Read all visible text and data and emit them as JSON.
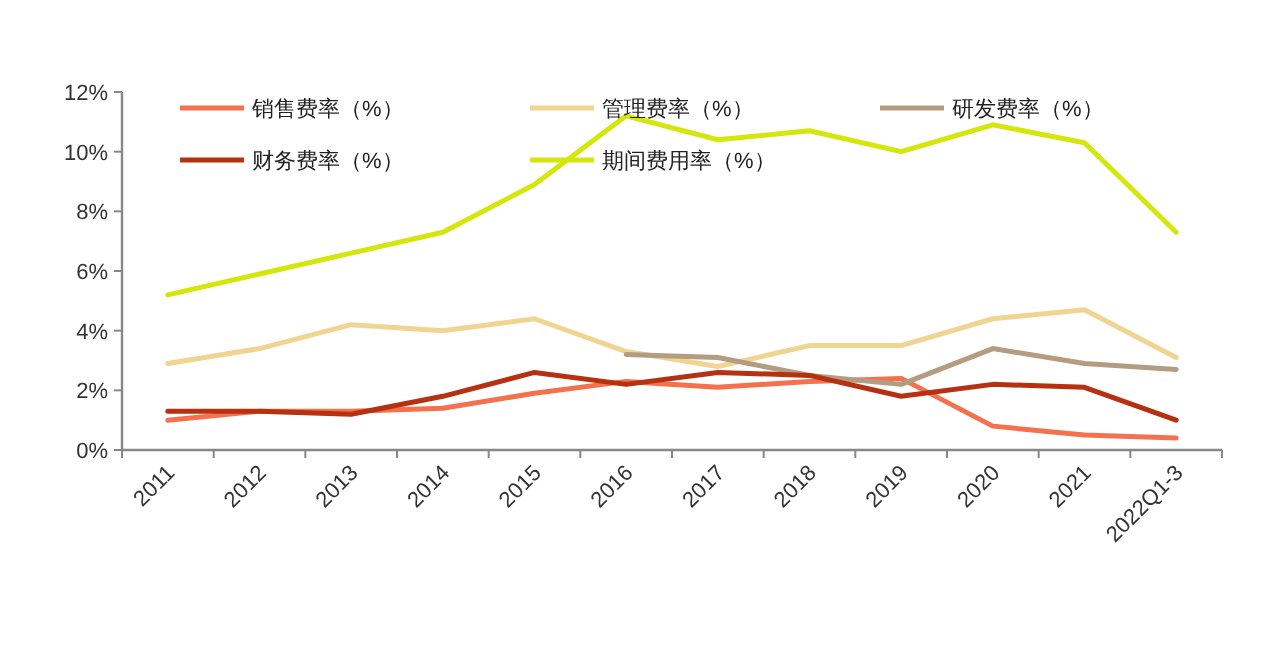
{
  "chart_data": {
    "type": "line",
    "categories": [
      "2011",
      "2012",
      "2013",
      "2014",
      "2015",
      "2016",
      "2017",
      "2018",
      "2019",
      "2020",
      "2021",
      "2022Q1-3"
    ],
    "series": [
      {
        "name": "销售费率（%）",
        "color": "#f4714e",
        "values": [
          1.0,
          1.3,
          1.3,
          1.4,
          1.9,
          2.3,
          2.1,
          2.3,
          2.4,
          0.8,
          0.5,
          0.4
        ]
      },
      {
        "name": "管理费率（%）",
        "color": "#f0d592",
        "values": [
          2.9,
          3.4,
          4.2,
          4.0,
          4.4,
          3.3,
          2.8,
          3.5,
          3.5,
          4.4,
          4.7,
          3.1
        ]
      },
      {
        "name": "研发费率（%）",
        "color": "#b39c7f",
        "values": [
          null,
          null,
          null,
          null,
          null,
          3.2,
          3.1,
          2.5,
          2.2,
          3.4,
          2.9,
          2.7
        ]
      },
      {
        "name": "财务费率（%）",
        "color": "#b5310f",
        "values": [
          1.3,
          1.3,
          1.2,
          1.8,
          2.6,
          2.2,
          2.6,
          2.5,
          1.8,
          2.2,
          2.1,
          1.0
        ]
      },
      {
        "name": "期间费用率（%）",
        "color": "#d4e60a",
        "values": [
          5.2,
          5.9,
          6.6,
          7.3,
          8.9,
          11.2,
          10.4,
          10.7,
          10.0,
          10.9,
          10.3,
          7.3
        ]
      }
    ],
    "ylim": [
      0,
      12
    ],
    "yticks": [
      {
        "value": 0,
        "label": "0%"
      },
      {
        "value": 2,
        "label": "2%"
      },
      {
        "value": 4,
        "label": "4%"
      },
      {
        "value": 6,
        "label": "6%"
      },
      {
        "value": 8,
        "label": "8%"
      },
      {
        "value": 10,
        "label": "10%"
      },
      {
        "value": 12,
        "label": "12%"
      }
    ],
    "grid": false,
    "legend": "top",
    "line_style": "solid"
  }
}
